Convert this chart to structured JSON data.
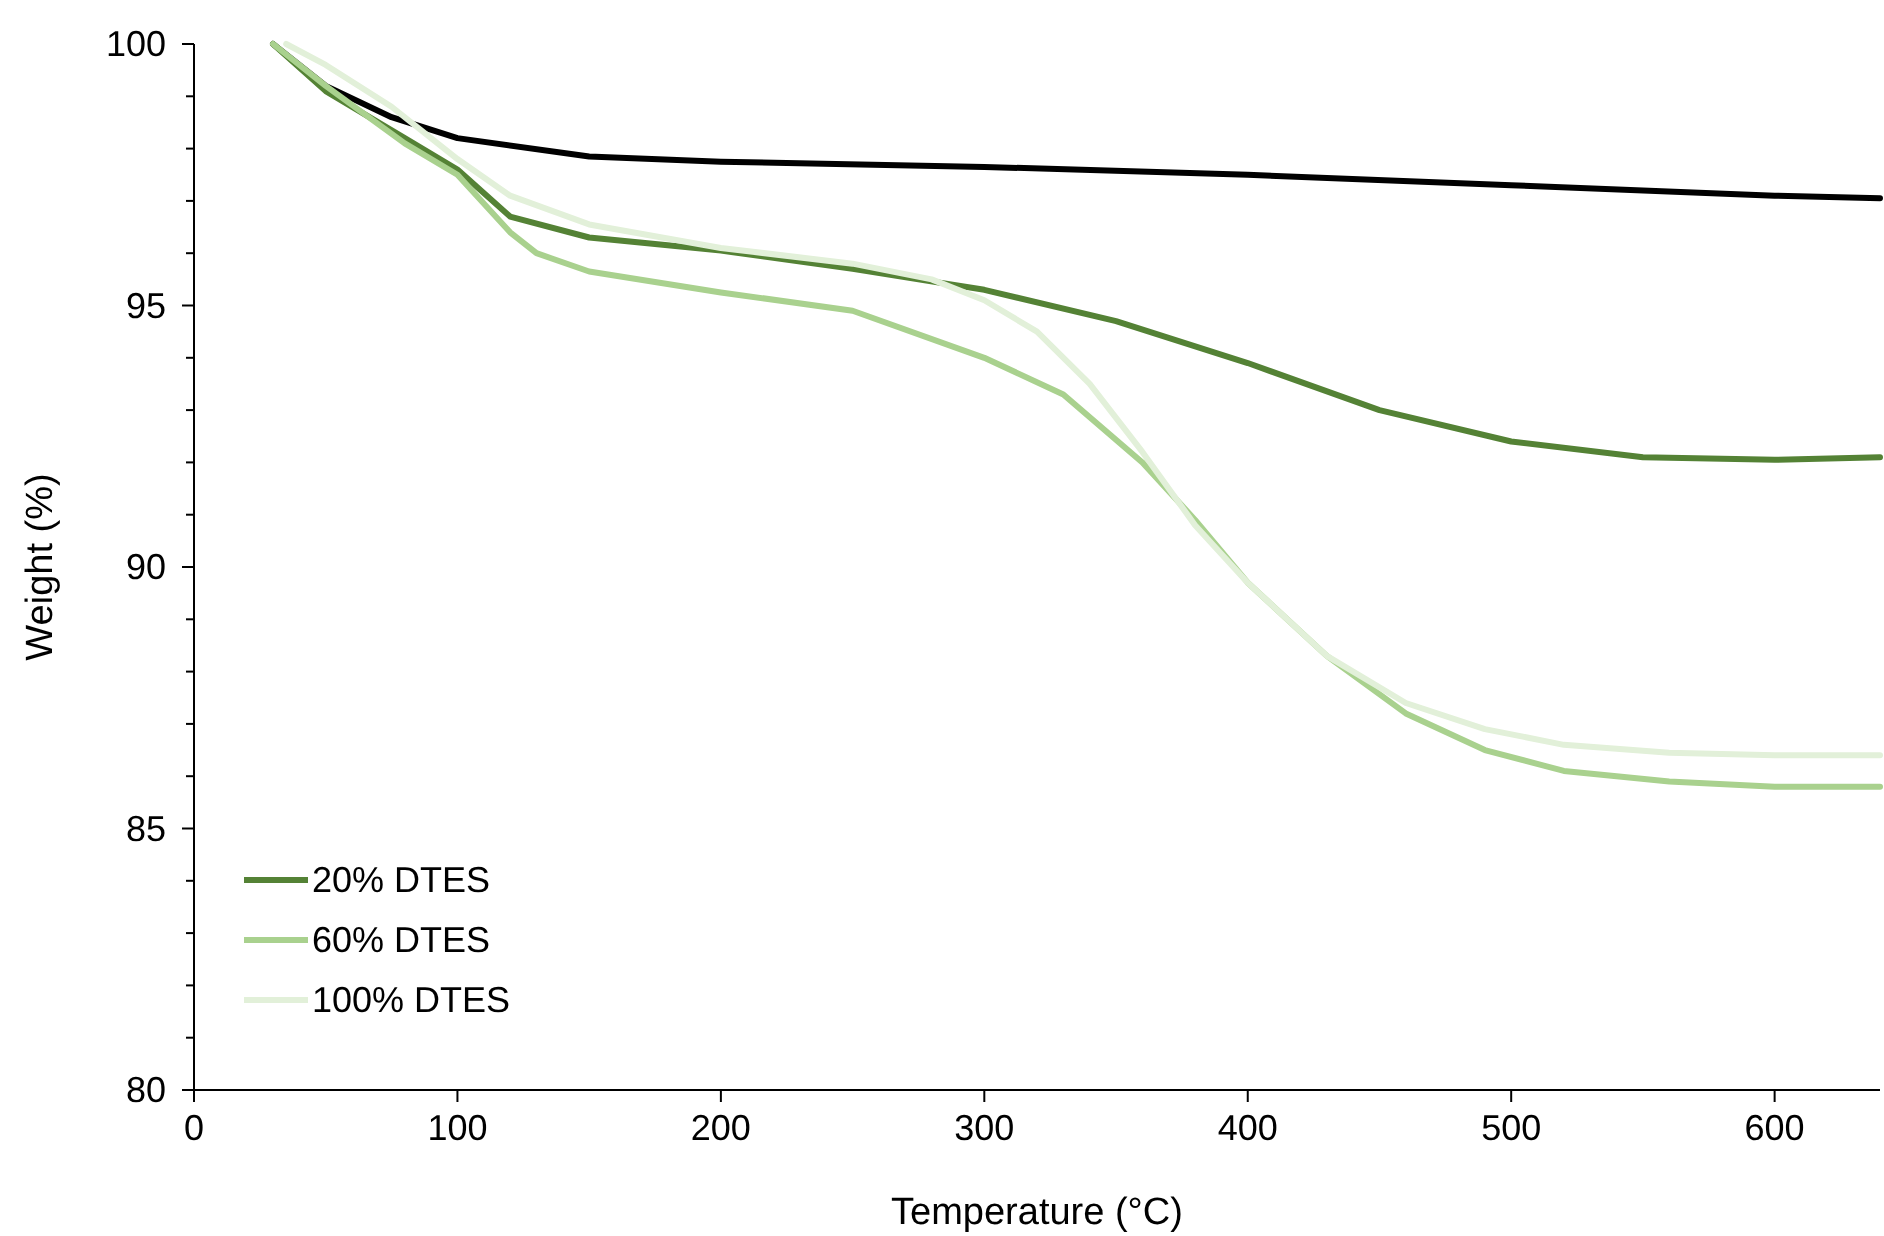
{
  "chart_data": {
    "type": "line",
    "xlabel": "Temperature (°C)",
    "ylabel": "Weight (%)",
    "xlim": [
      0,
      640
    ],
    "ylim": [
      80,
      100
    ],
    "xticks": [
      0,
      100,
      200,
      300,
      400,
      500,
      600
    ],
    "yticks": [
      80,
      {
        "value": 81,
        "label": null
      },
      {
        "value": 82,
        "label": null
      },
      {
        "value": 83,
        "label": null
      },
      {
        "value": 84,
        "label": null
      },
      85,
      {
        "value": 86,
        "label": null
      },
      {
        "value": 87,
        "label": null
      },
      {
        "value": 88,
        "label": null
      },
      {
        "value": 89,
        "label": null
      },
      90,
      {
        "value": 91,
        "label": null
      },
      {
        "value": 92,
        "label": null
      },
      {
        "value": 93,
        "label": null
      },
      {
        "value": 94,
        "label": null
      },
      95,
      {
        "value": 96,
        "label": null
      },
      {
        "value": 97,
        "label": null
      },
      {
        "value": 98,
        "label": null
      },
      {
        "value": 99,
        "label": null
      },
      100
    ],
    "grid": false,
    "legend": "bottom left",
    "line_style": "solid",
    "series": [
      {
        "color": "#000000",
        "x": [
          30,
          50,
          75,
          100,
          150,
          200,
          300,
          400,
          500,
          600,
          640
        ],
        "values": [
          100,
          99.2,
          98.6,
          98.2,
          97.85,
          97.75,
          97.65,
          97.5,
          97.3,
          97.1,
          97.05
        ]
      },
      {
        "name": "20% DTES",
        "color": "#548235",
        "x": [
          30,
          50,
          80,
          100,
          120,
          150,
          200,
          250,
          300,
          350,
          400,
          450,
          500,
          550,
          600,
          640
        ],
        "values": [
          100,
          99.1,
          98.2,
          97.6,
          96.7,
          96.3,
          96.05,
          95.7,
          95.3,
          94.7,
          93.9,
          93.0,
          92.4,
          92.1,
          92.05,
          92.1
        ]
      },
      {
        "name": "60% DTES",
        "color": "#a9d18e",
        "x": [
          30,
          50,
          80,
          100,
          120,
          130,
          150,
          200,
          250,
          300,
          330,
          360,
          380,
          400,
          430,
          460,
          490,
          520,
          560,
          600,
          640
        ],
        "values": [
          100,
          99.2,
          98.1,
          97.5,
          96.4,
          96.0,
          95.65,
          95.25,
          94.9,
          94.0,
          93.3,
          92.0,
          90.9,
          89.7,
          88.3,
          87.2,
          86.5,
          86.1,
          85.9,
          85.8,
          85.8
        ]
      },
      {
        "name": "100% DTES",
        "color": "#e2f0d9",
        "x": [
          35,
          50,
          75,
          100,
          120,
          150,
          200,
          250,
          280,
          300,
          320,
          340,
          360,
          380,
          400,
          430,
          460,
          490,
          520,
          560,
          600,
          640
        ],
        "values": [
          100,
          99.6,
          98.8,
          97.8,
          97.1,
          96.55,
          96.1,
          95.8,
          95.5,
          95.1,
          94.5,
          93.5,
          92.2,
          90.8,
          89.7,
          88.3,
          87.4,
          86.9,
          86.6,
          86.45,
          86.4,
          86.4
        ]
      }
    ]
  }
}
